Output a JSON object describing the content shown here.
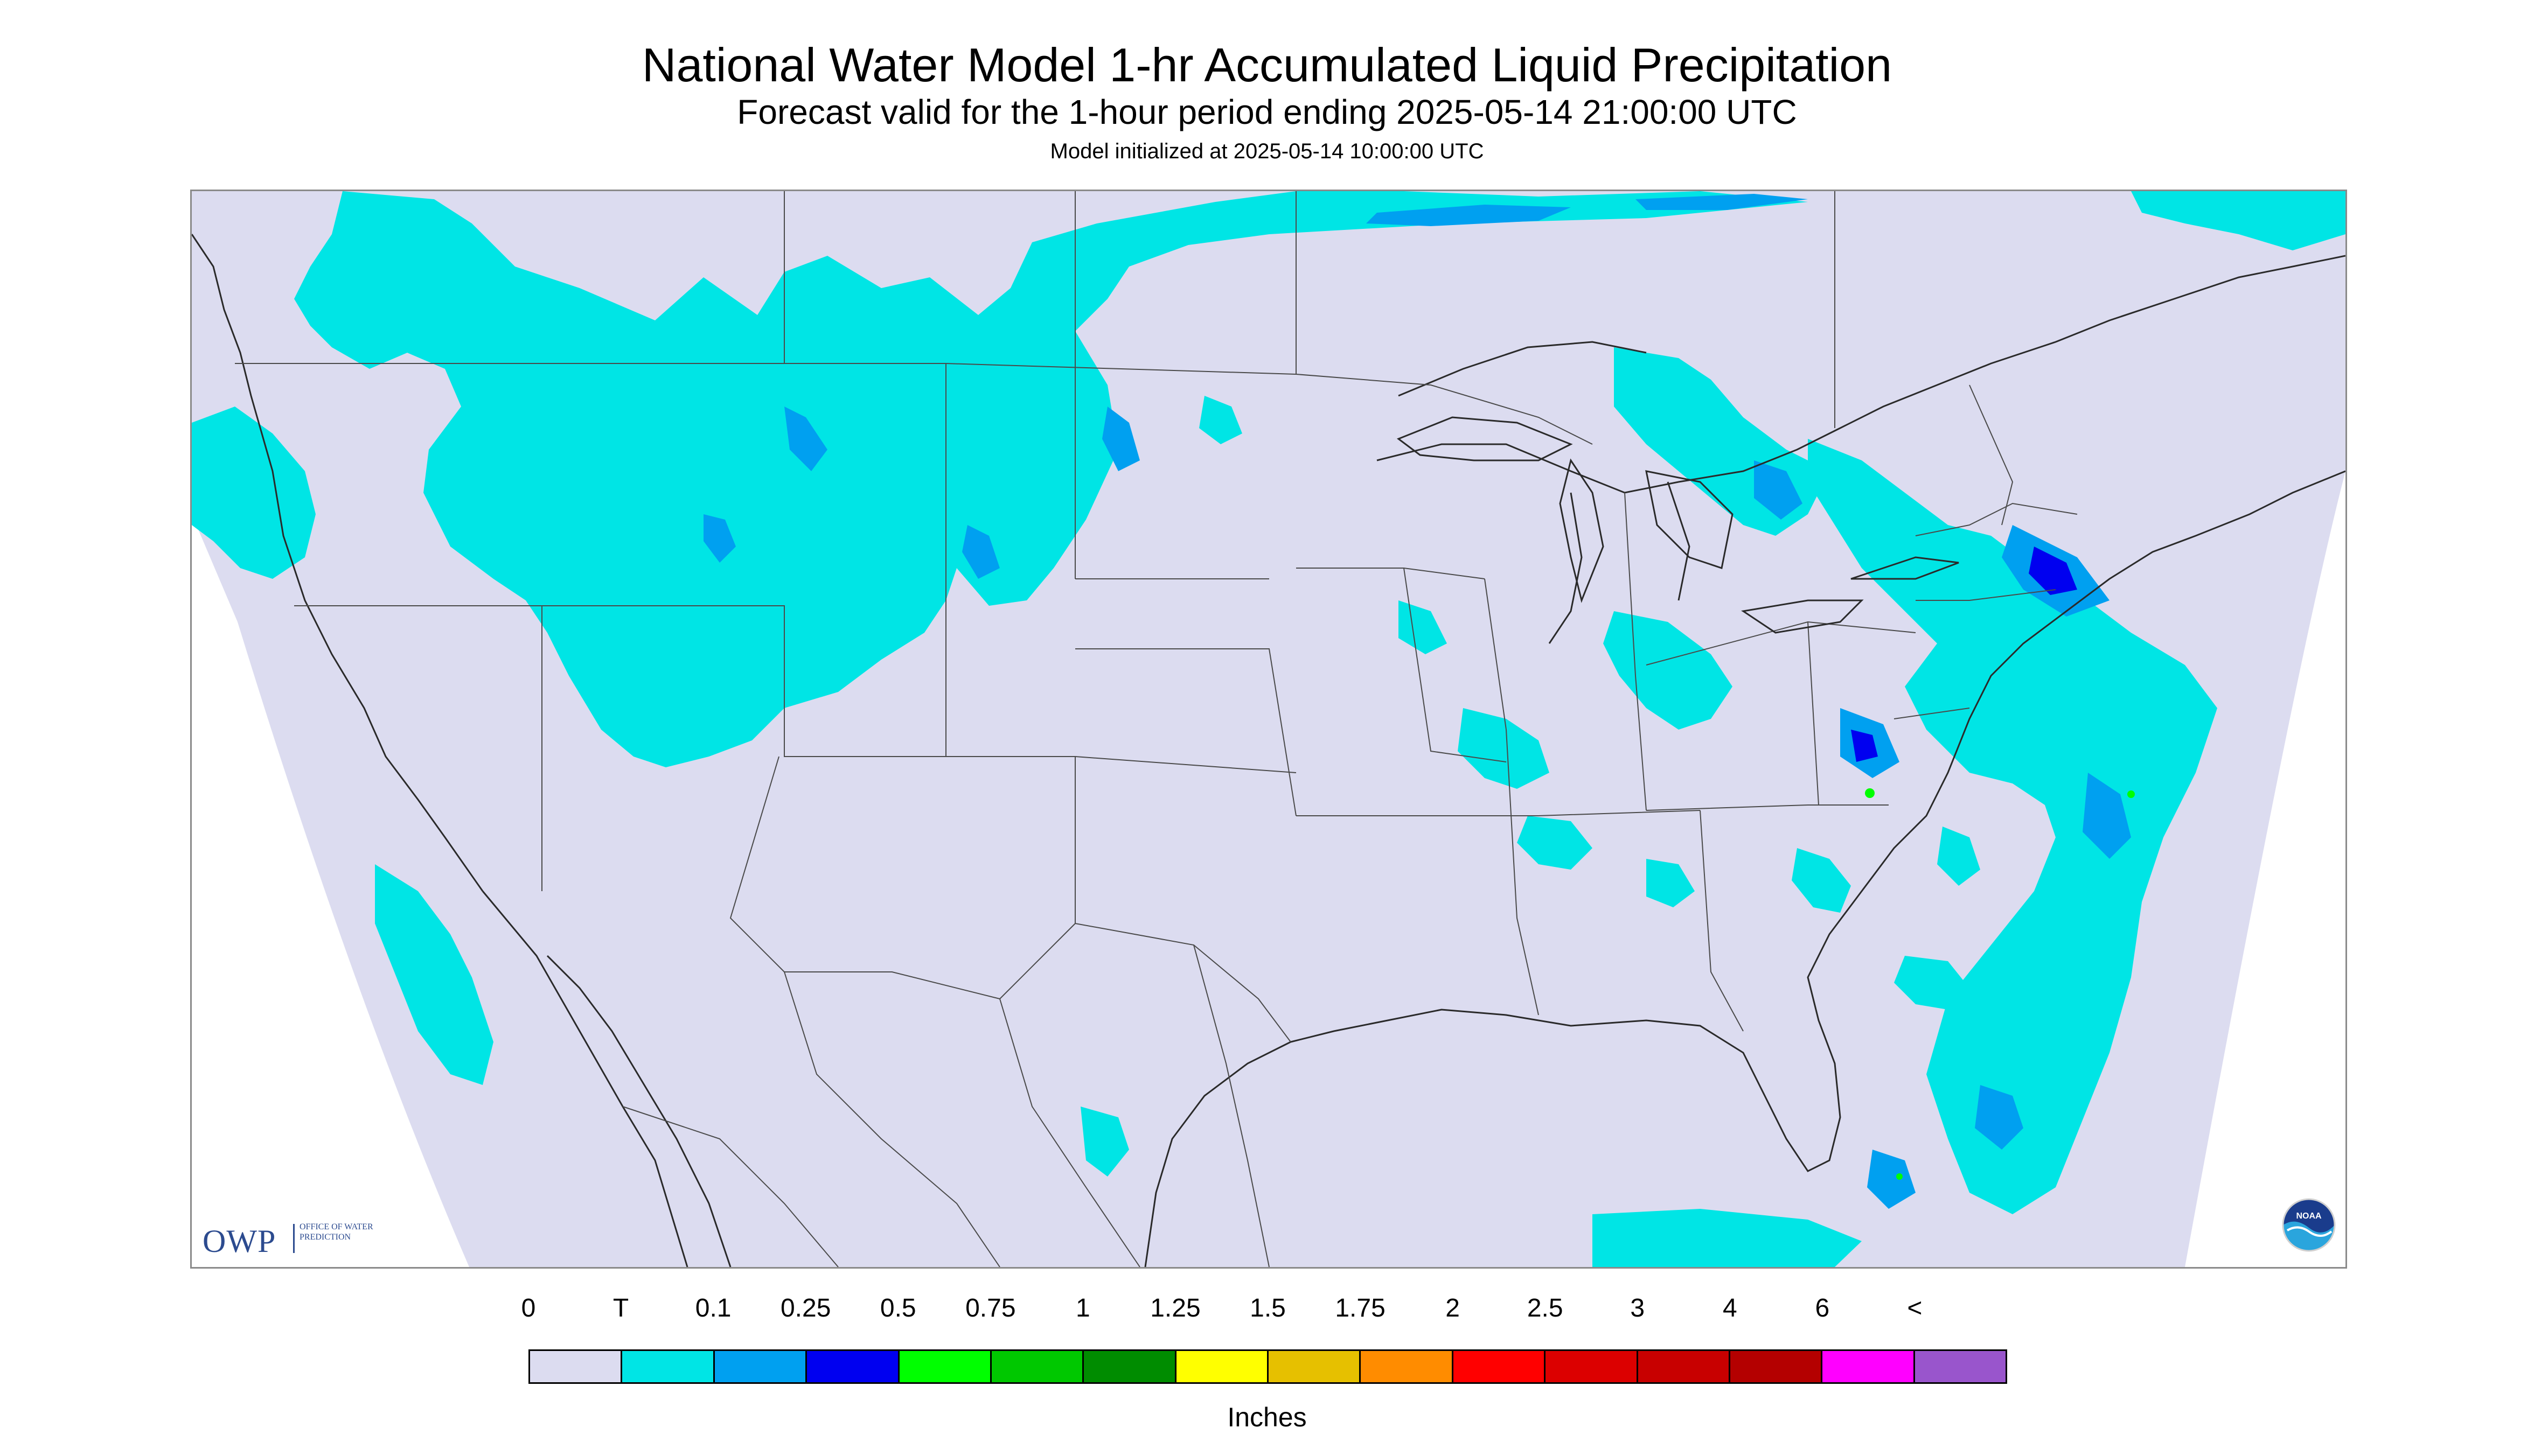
{
  "header": {
    "title": "National Water Model 1-hr Accumulated Liquid Precipitation",
    "subtitle": "Forecast valid for the 1-hour period ending 2025-05-14 21:00:00 UTC",
    "init": "Model initialized at 2025-05-14 10:00:00 UTC"
  },
  "logos": {
    "owp_big": "OWP",
    "owp_small": "Office of Water Prediction",
    "noaa": "NOAA"
  },
  "legend": {
    "units": "Inches",
    "labels": [
      "0",
      "T",
      "0.1",
      "0.25",
      "0.5",
      "0.75",
      "1",
      "1.25",
      "1.5",
      "1.75",
      "2",
      "2.5",
      "3",
      "4",
      "6",
      "<"
    ],
    "colors": [
      "#dcdcf0",
      "#00e5e5",
      "#00a0f0",
      "#0000f0",
      "#00ff00",
      "#00c800",
      "#008c00",
      "#ffff00",
      "#e6c000",
      "#ff8c00",
      "#ff0000",
      "#dc0000",
      "#c80000",
      "#b40000",
      "#ff00ff",
      "#9955cc"
    ]
  },
  "colors": {
    "no_data": "#ffffff",
    "zero_precip": "#dcdcf0",
    "trace": "#00e5e5",
    "light": "#00a0f0",
    "moderate": "#0000f0",
    "heavy": "#00ff00",
    "borders": "#2a2a2a"
  }
}
